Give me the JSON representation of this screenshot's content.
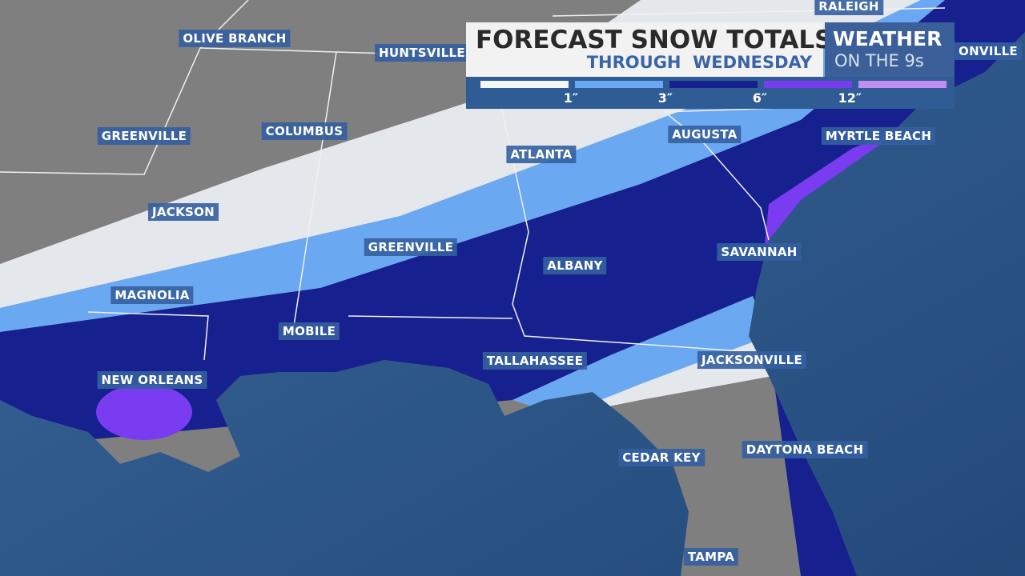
{
  "header": {
    "title": "FORECAST SNOW TOTALS",
    "subtitle": "THROUGH  WEDNESDAY",
    "brand_top": "WEATHER",
    "brand_bottom": "ON THE 9s"
  },
  "legend": {
    "colors": [
      "#f4f6f8",
      "#6aa8f2",
      "#16208f",
      "#7a3cf0",
      "#c38cf0"
    ],
    "labels": [
      "1″",
      "3″",
      "6″",
      "12″"
    ]
  },
  "cities": [
    "OLIVE BRANCH",
    "HUNTSVILLE",
    "RALEIGH",
    "ONVILLE",
    "GREENVILLE",
    "COLUMBUS",
    "ATLANTA",
    "AUGUSTA",
    "MYRTLE BEACH",
    "JACKSON",
    "GREENVILLE",
    "ALBANY",
    "SAVANNAH",
    "MAGNOLIA",
    "MOBILE",
    "TALLAHASSEE",
    "JACKSONVILLE",
    "NEW ORLEANS",
    "CEDAR KEY",
    "DAYTONA BEACH",
    "TAMPA"
  ]
}
